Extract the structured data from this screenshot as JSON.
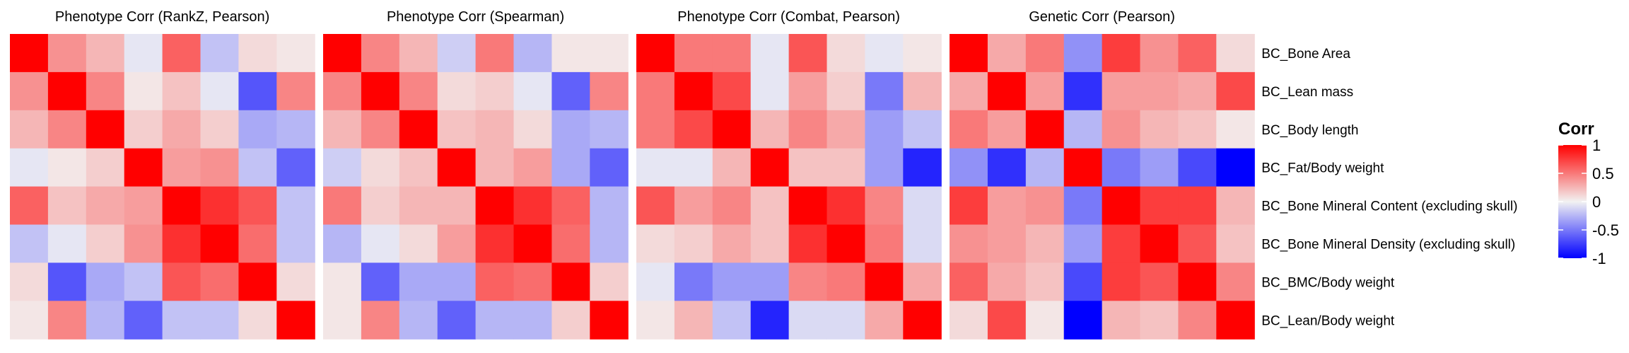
{
  "chart_data": {
    "type": "heatmap",
    "rows": [
      "BC_Bone Area",
      "BC_Lean mass",
      "BC_Body length",
      "BC_Fat/Body weight",
      "BC_Bone Mineral Content (excluding skull)",
      "BC_Bone Mineral Density (excluding skull)",
      "BC_BMC/Body weight",
      "BC_Lean/Body weight"
    ],
    "panels": [
      {
        "title": "Phenotype Corr (RankZ, Pearson)",
        "matrix": [
          [
            1.0,
            0.4,
            0.25,
            -0.05,
            0.6,
            -0.2,
            0.1,
            0.05
          ],
          [
            0.4,
            1.0,
            0.45,
            0.05,
            0.2,
            -0.05,
            -0.65,
            0.45
          ],
          [
            0.25,
            0.45,
            1.0,
            0.15,
            0.3,
            0.15,
            -0.3,
            -0.25
          ],
          [
            -0.05,
            0.05,
            0.15,
            1.0,
            0.35,
            0.4,
            -0.2,
            -0.6
          ],
          [
            0.6,
            0.2,
            0.3,
            0.35,
            1.0,
            0.8,
            0.65,
            -0.2
          ],
          [
            -0.2,
            -0.05,
            0.15,
            0.4,
            0.8,
            1.0,
            0.55,
            -0.2
          ],
          [
            0.1,
            -0.65,
            -0.3,
            -0.2,
            0.65,
            0.55,
            1.0,
            0.1
          ],
          [
            0.05,
            0.45,
            -0.25,
            -0.6,
            -0.2,
            -0.2,
            0.1,
            1.0
          ]
        ]
      },
      {
        "title": "Phenotype Corr (Spearman)",
        "matrix": [
          [
            1.0,
            0.45,
            0.25,
            -0.15,
            0.5,
            -0.25,
            0.05,
            0.05
          ],
          [
            0.45,
            1.0,
            0.45,
            0.1,
            0.15,
            -0.05,
            -0.6,
            0.45
          ],
          [
            0.25,
            0.45,
            1.0,
            0.2,
            0.25,
            0.1,
            -0.3,
            -0.25
          ],
          [
            -0.15,
            0.1,
            0.2,
            1.0,
            0.25,
            0.35,
            -0.3,
            -0.6
          ],
          [
            0.5,
            0.15,
            0.25,
            0.25,
            1.0,
            0.8,
            0.6,
            -0.25
          ],
          [
            -0.25,
            -0.05,
            0.1,
            0.35,
            0.8,
            1.0,
            0.55,
            -0.25
          ],
          [
            0.05,
            -0.6,
            -0.3,
            -0.3,
            0.6,
            0.55,
            1.0,
            0.15
          ],
          [
            0.05,
            0.45,
            -0.25,
            -0.6,
            -0.25,
            -0.25,
            0.15,
            1.0
          ]
        ]
      },
      {
        "title": "Phenotype Corr (Combat, Pearson)",
        "matrix": [
          [
            1.0,
            0.5,
            0.5,
            -0.05,
            0.65,
            0.1,
            -0.05,
            0.05
          ],
          [
            0.5,
            1.0,
            0.7,
            -0.05,
            0.35,
            0.15,
            -0.5,
            0.25
          ],
          [
            0.5,
            0.7,
            1.0,
            0.25,
            0.45,
            0.3,
            -0.35,
            -0.2
          ],
          [
            -0.05,
            -0.05,
            0.25,
            1.0,
            0.2,
            0.2,
            -0.35,
            -0.85
          ],
          [
            0.65,
            0.35,
            0.45,
            0.2,
            1.0,
            0.8,
            0.45,
            -0.1
          ],
          [
            0.1,
            0.15,
            0.3,
            0.2,
            0.8,
            1.0,
            0.5,
            -0.1
          ],
          [
            -0.05,
            -0.5,
            -0.35,
            -0.35,
            0.45,
            0.5,
            1.0,
            0.3
          ],
          [
            0.05,
            0.25,
            -0.2,
            -0.85,
            -0.1,
            -0.1,
            0.3,
            1.0
          ]
        ]
      },
      {
        "title": "Genetic Corr  (Pearson)",
        "matrix": [
          [
            1.0,
            0.3,
            0.5,
            -0.4,
            0.75,
            0.4,
            0.6,
            0.1
          ],
          [
            0.3,
            1.0,
            0.35,
            -0.8,
            0.35,
            0.35,
            0.3,
            0.7
          ],
          [
            0.5,
            0.35,
            1.0,
            -0.25,
            0.4,
            0.25,
            0.2,
            0.05
          ],
          [
            -0.4,
            -0.8,
            -0.25,
            1.0,
            -0.5,
            -0.35,
            -0.7,
            -1.0
          ],
          [
            0.75,
            0.35,
            0.4,
            -0.5,
            1.0,
            0.75,
            0.75,
            0.25
          ],
          [
            0.4,
            0.35,
            0.25,
            -0.35,
            0.75,
            1.0,
            0.65,
            0.2
          ],
          [
            0.6,
            0.3,
            0.2,
            -0.7,
            0.75,
            0.65,
            1.0,
            0.45
          ],
          [
            0.1,
            0.7,
            0.05,
            -1.0,
            0.25,
            0.2,
            0.45,
            1.0
          ]
        ]
      }
    ],
    "legend": {
      "title": "Corr",
      "ticks": [
        1,
        0.5,
        0,
        -0.5,
        -1
      ],
      "tick_labels": [
        "1",
        "0.5",
        "0",
        "-0.5",
        "-1"
      ],
      "range": [
        -1,
        1
      ]
    },
    "colors": {
      "high": "#ff0000",
      "mid": "#f2f2f2",
      "low": "#0000ff"
    }
  }
}
